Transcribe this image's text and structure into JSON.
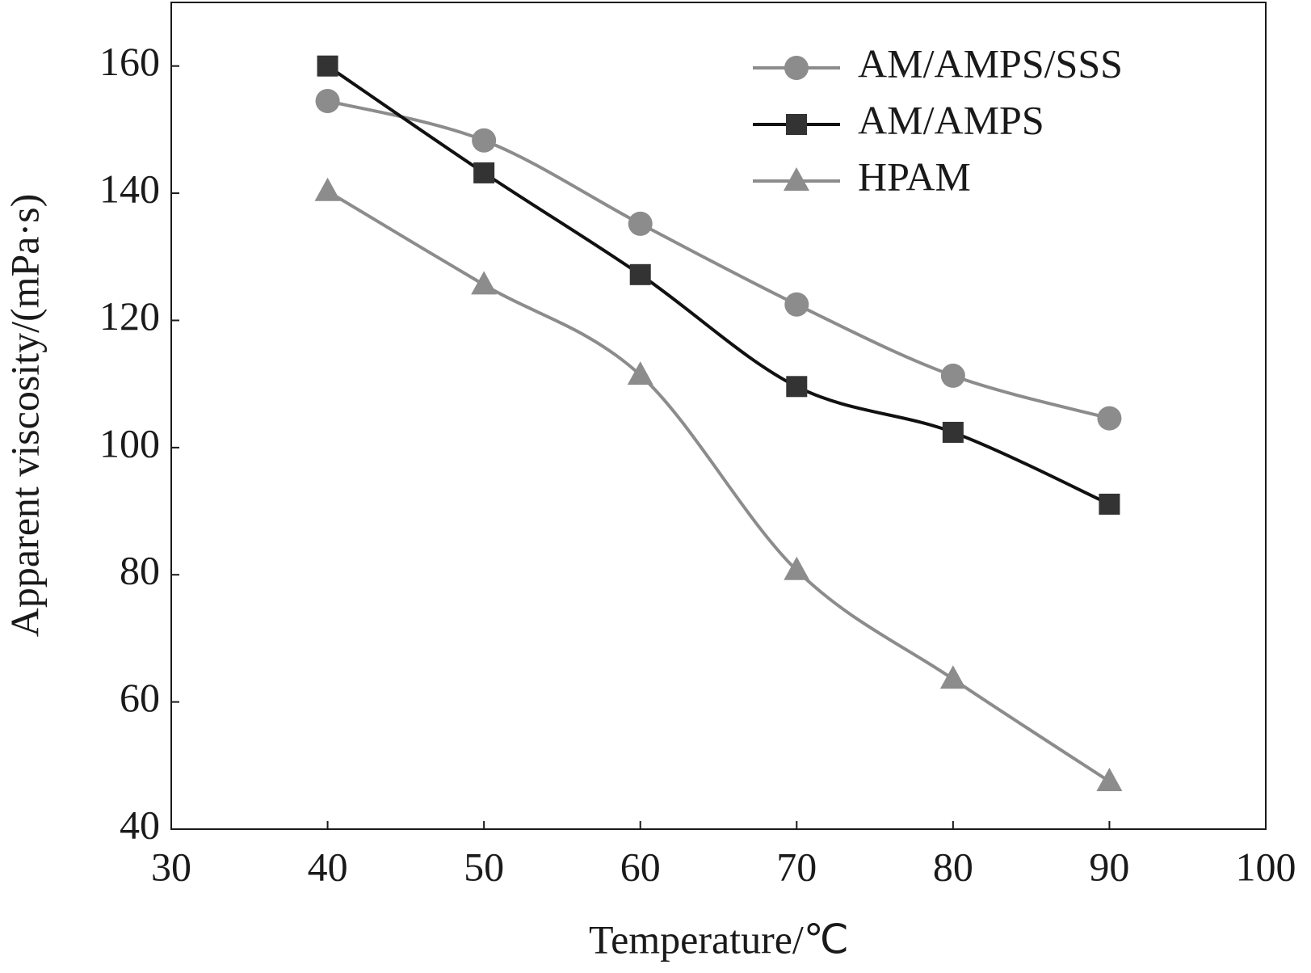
{
  "chart_data": {
    "type": "line",
    "x_label": "Temperature/℃",
    "y_label": "Apparent viscosity/(mPa·s)",
    "x": [
      40,
      50,
      60,
      70,
      80,
      90
    ],
    "series": [
      {
        "name": "AM/AMPS/SSS",
        "color": "#8c8c8c",
        "marker": "circle",
        "values": [
          154.5,
          148.3,
          135.2,
          122.5,
          111.3,
          104.6
        ]
      },
      {
        "name": "AM/AMPS",
        "color": "#333333",
        "marker": "square",
        "values": [
          160,
          143.2,
          127.2,
          109.6,
          102.4,
          91.1
        ]
      },
      {
        "name": "HPAM",
        "color": "#8c8c8c",
        "marker": "triangle",
        "values": [
          140.3,
          125.6,
          111.4,
          80.7,
          63.6,
          47.5
        ]
      }
    ],
    "xlim": [
      30,
      100
    ],
    "xticks": [
      30,
      40,
      50,
      60,
      70,
      80,
      90,
      100
    ],
    "ylim": [
      40,
      170
    ],
    "yticks": [
      40,
      60,
      80,
      100,
      120,
      140,
      160
    ],
    "legend": "upper right",
    "grid": false
  }
}
